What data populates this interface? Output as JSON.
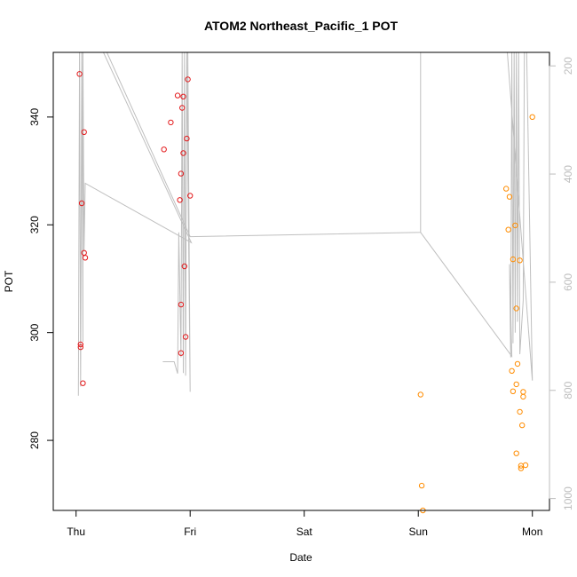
{
  "chart_data": {
    "type": "scatter",
    "title": "ATOM2 Northeast_Pacific_1 POT",
    "xlabel": "Date",
    "ylabel": "POT",
    "x_ticks": [
      {
        "label": "Thu",
        "value": 0
      },
      {
        "label": "Fri",
        "value": 1
      },
      {
        "label": "Sat",
        "value": 2
      },
      {
        "label": "Sun",
        "value": 3
      },
      {
        "label": "Mon",
        "value": 4
      }
    ],
    "xlim": [
      -0.2,
      4.15
    ],
    "ylim": [
      267,
      352
    ],
    "y_ticks": [
      280,
      300,
      320,
      340
    ],
    "y2_label": "",
    "y2_ticks": [
      200,
      400,
      600,
      800,
      1000
    ],
    "y2lim": [
      1022,
      175
    ],
    "y2_reversed": true,
    "grid": false,
    "legend": "none",
    "series": [
      {
        "color": "#e31a1c",
        "points": [
          [
            0.03,
            348.0
          ],
          [
            0.04,
            297.8
          ],
          [
            0.04,
            297.3
          ],
          [
            0.05,
            324.0
          ],
          [
            0.06,
            290.6
          ],
          [
            0.07,
            314.8
          ],
          [
            0.07,
            337.2
          ],
          [
            0.08,
            313.9
          ],
          [
            0.77,
            334.0
          ],
          [
            0.83,
            339.0
          ],
          [
            0.89,
            344.0
          ],
          [
            0.91,
            324.6
          ],
          [
            0.92,
            296.2
          ],
          [
            0.92,
            305.2
          ],
          [
            0.92,
            329.5
          ],
          [
            0.93,
            341.7
          ],
          [
            0.94,
            343.8
          ],
          [
            0.94,
            333.3
          ],
          [
            0.95,
            312.3
          ],
          [
            0.96,
            299.2
          ],
          [
            0.97,
            336.0
          ],
          [
            0.98,
            347.0
          ],
          [
            1.0,
            325.4
          ]
        ]
      },
      {
        "color": "#ff8c00",
        "points": [
          [
            3.02,
            288.5
          ],
          [
            3.03,
            271.6
          ],
          [
            3.04,
            267.0
          ],
          [
            3.77,
            326.7
          ],
          [
            3.79,
            319.1
          ],
          [
            3.8,
            325.2
          ],
          [
            3.82,
            292.9
          ],
          [
            3.83,
            289.1
          ],
          [
            3.83,
            313.6
          ],
          [
            3.85,
            319.9
          ],
          [
            3.86,
            304.5
          ],
          [
            3.86,
            277.6
          ],
          [
            3.86,
            290.4
          ],
          [
            3.87,
            294.2
          ],
          [
            3.89,
            285.3
          ],
          [
            3.89,
            313.4
          ],
          [
            3.9,
            274.8
          ],
          [
            3.9,
            275.3
          ],
          [
            3.91,
            282.8
          ],
          [
            3.92,
            289.0
          ],
          [
            3.92,
            288.1
          ],
          [
            3.94,
            275.4
          ],
          [
            4.0,
            340.0
          ]
        ]
      }
    ],
    "line_color": "#bfbfbf",
    "line_series": [
      [
        [
          0.02,
          288.3
        ],
        [
          0.03,
          352.0
        ],
        [
          0.04,
          290.0
        ],
        [
          0.05,
          352.0
        ],
        [
          0.06,
          298.3
        ],
        [
          0.06,
          352.0
        ],
        [
          0.07,
          315.0
        ],
        [
          0.08,
          327.7
        ],
        [
          1.01,
          316.7
        ],
        [
          0.24,
          352.0
        ],
        [
          0.98,
          352.0
        ],
        [
          1.0,
          289.0
        ],
        [
          0.97,
          352.0
        ],
        [
          0.96,
          292.0
        ],
        [
          0.95,
          352.0
        ],
        [
          0.94,
          292.5
        ],
        [
          0.93,
          352.0
        ],
        [
          0.92,
          295.4
        ],
        [
          0.9,
          318.6
        ],
        [
          0.89,
          292.4
        ],
        [
          0.86,
          294.6
        ],
        [
          0.76,
          294.6
        ]
      ],
      [
        [
          0.27,
          352.0
        ],
        [
          1.0,
          317.8
        ],
        [
          3.02,
          318.6
        ],
        [
          3.02,
          352.0
        ]
      ],
      [
        [
          3.02,
          318.6
        ],
        [
          3.82,
          295.6
        ],
        [
          3.8,
          312.7
        ],
        [
          3.81,
          295.4
        ],
        [
          3.82,
          352.0
        ],
        [
          3.83,
          298.0
        ],
        [
          3.84,
          352.0
        ],
        [
          3.85,
          300.0
        ],
        [
          3.86,
          352.0
        ],
        [
          3.87,
          302.0
        ],
        [
          3.88,
          352.0
        ],
        [
          3.89,
          296.0
        ],
        [
          3.92,
          306.0
        ],
        [
          3.93,
          352.0
        ],
        [
          3.95,
          352.0
        ],
        [
          4.0,
          291.1
        ],
        [
          3.78,
          352.0
        ]
      ]
    ]
  }
}
